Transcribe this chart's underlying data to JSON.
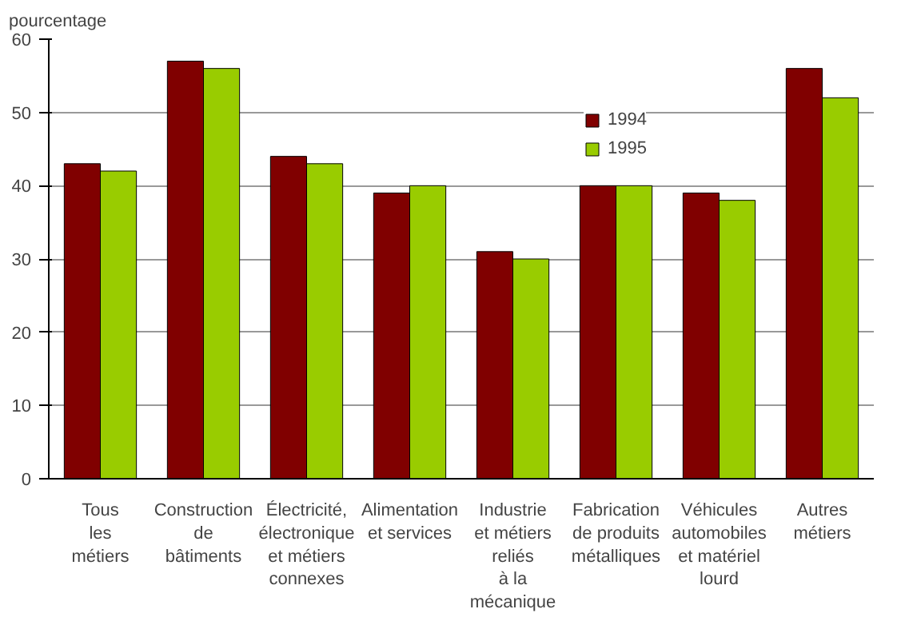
{
  "chart_data": {
    "type": "bar",
    "ylabel": "pourcentage",
    "categories": [
      "Tous\nles\nmétiers",
      "Construction\nde\nbâtiments",
      "Électricité,\nélectronique\net métiers\nconnexes",
      "Alimentation\net services",
      "Industrie\net métiers\nreliés\nà la\nmécanique",
      "Fabrication\nde produits\nmétalliques",
      "Véhicules\nautomobiles\net matériel\nlourd",
      "Autres\nmétiers"
    ],
    "series": [
      {
        "name": "1994",
        "color": "#800000",
        "values": [
          43,
          57,
          44,
          39,
          31,
          40,
          39,
          56
        ]
      },
      {
        "name": "1995",
        "color": "#99cc00",
        "values": [
          42,
          56,
          43,
          40,
          30,
          40,
          38,
          52
        ]
      }
    ],
    "ylim": [
      0,
      60
    ],
    "yticks": [
      0,
      10,
      20,
      30,
      40,
      50,
      60
    ],
    "grid": "y",
    "legend": "top"
  }
}
